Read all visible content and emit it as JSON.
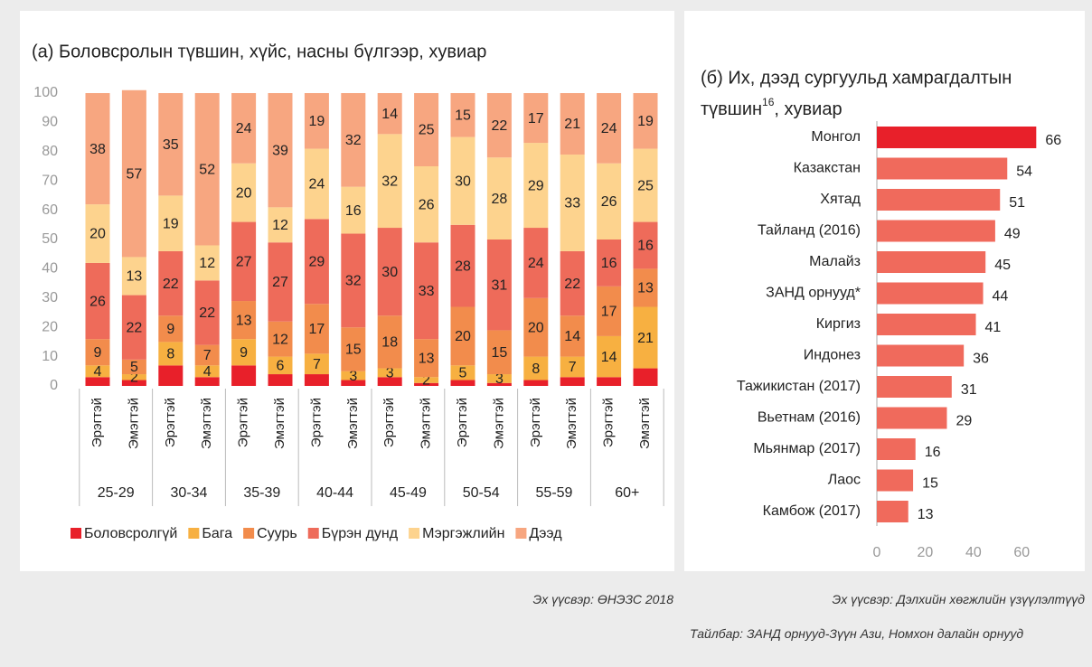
{
  "chart_data": [
    {
      "type": "stacked_bar",
      "title": "(а) Боловсролын түвшин, хүйс, насны бүлгээр, хувиар",
      "categories": [
        "Эрэгтэй",
        "Эмэгтэй",
        "Эрэгтэй",
        "Эмэгтэй",
        "Эрэгтэй",
        "Эмэгтэй",
        "Эрэгтэй",
        "Эмэгтэй",
        "Эрэгтэй",
        "Эмэгтэй",
        "Эрэгтэй",
        "Эмэгтэй",
        "Эрэгтэй",
        "Эмэгтэй",
        "Эрэгтэй",
        "Эмэгтэй"
      ],
      "groups": [
        "25-29",
        "30-34",
        "35-39",
        "40-44",
        "45-49",
        "50-54",
        "55-59",
        "60+"
      ],
      "series": [
        {
          "name": "Боловсролгүй",
          "color": "#e8202a",
          "data_labels": false,
          "values": [
            3,
            2,
            7,
            3,
            7,
            4,
            4,
            2,
            3,
            1,
            2,
            1,
            2,
            3,
            3,
            6
          ]
        },
        {
          "name": "Бага",
          "color": "#f7b041",
          "data_labels": true,
          "values": [
            4,
            2,
            8,
            4,
            9,
            6,
            7,
            3,
            3,
            2,
            5,
            3,
            8,
            7,
            14,
            21
          ]
        },
        {
          "name": "Суурь",
          "color": "#f28c4c",
          "data_labels": true,
          "values": [
            9,
            5,
            9,
            7,
            13,
            12,
            17,
            15,
            18,
            13,
            20,
            15,
            20,
            14,
            17,
            13
          ]
        },
        {
          "name": "Бүрэн дунд",
          "color": "#ee6b5a",
          "data_labels": true,
          "values": [
            26,
            22,
            22,
            22,
            27,
            27,
            29,
            32,
            30,
            33,
            28,
            31,
            24,
            22,
            16,
            16
          ]
        },
        {
          "name": "Мэргэжлийн",
          "color": "#fdd38e",
          "data_labels": true,
          "values": [
            20,
            13,
            19,
            12,
            20,
            12,
            24,
            16,
            32,
            26,
            30,
            28,
            29,
            33,
            26,
            25
          ]
        },
        {
          "name": "Дээд",
          "color": "#f7a680",
          "data_labels": true,
          "values": [
            38,
            57,
            35,
            52,
            24,
            39,
            19,
            32,
            14,
            25,
            15,
            22,
            17,
            21,
            24,
            19
          ]
        }
      ],
      "ylim": [
        0,
        100
      ],
      "yticks": [
        0,
        10,
        20,
        30,
        40,
        50,
        60,
        70,
        80,
        90,
        100
      ],
      "legend": "bottom",
      "source": "Эх үүсвэр: ӨНЭЗС 2018"
    },
    {
      "type": "hbar",
      "title": [
        "(б) Их, дээд сургуульд хамрагдалтын",
        "түвшин"
      ],
      "title_superscript": "16",
      "title_suffix": ", хувиар",
      "categories": [
        "Монгол",
        "Казакстан",
        "Хятад",
        "Тайланд (2016)",
        "Малайз",
        "ЗАНД орнууд*",
        "Киргиз",
        "Индонез",
        "Тажикистан (2017)",
        "Вьетнам (2016)",
        "Мьянмар (2017)",
        "Лаос",
        "Камбож (2017)"
      ],
      "values": [
        66,
        54,
        51,
        49,
        45,
        44,
        41,
        36,
        31,
        29,
        16,
        15,
        13
      ],
      "colors": [
        "#e8202a",
        "#f06a5c",
        "#f06a5c",
        "#f06a5c",
        "#f06a5c",
        "#f06a5c",
        "#f06a5c",
        "#f06a5c",
        "#f06a5c",
        "#f06a5c",
        "#f06a5c",
        "#f06a5c",
        "#f06a5c"
      ],
      "xlim": [
        0,
        70
      ],
      "xticks": [
        0,
        20,
        40,
        60
      ],
      "source": "Эх үүсвэр: Дэлхийн хөгжлийн үзүүлэлтүүд",
      "note": "Тайлбар: ЗАНД орнууд-Зүүн Ази, Номхон далайн орнууд"
    }
  ]
}
